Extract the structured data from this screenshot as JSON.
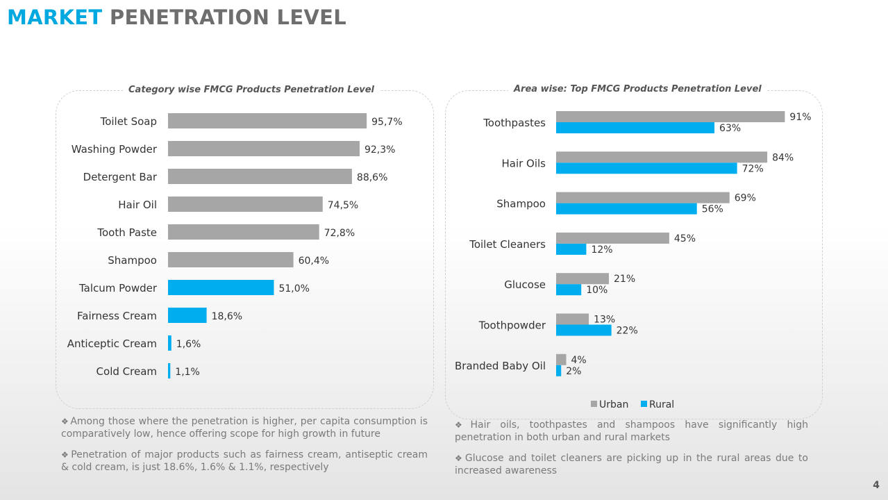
{
  "header": {
    "title_highlight": "MARKET",
    "title_rest": "PENETRATION LEVEL"
  },
  "chart_data": [
    {
      "type": "bar",
      "orientation": "horizontal",
      "title": "Category wise FMCG Products Penetration Level",
      "categories": [
        "Toilet Soap",
        "Washing Powder",
        "Detergent Bar",
        "Hair Oil",
        "Tooth Paste",
        "Shampoo",
        "Talcum Powder",
        "Fairness Cream",
        "Anticeptic Cream",
        "Cold Cream"
      ],
      "values": [
        95.7,
        92.3,
        88.6,
        74.5,
        72.8,
        60.4,
        51.0,
        18.6,
        1.6,
        1.1
      ],
      "labels": [
        "95,7%",
        "92,3%",
        "88,6%",
        "74,5%",
        "72,8%",
        "60,4%",
        "51,0%",
        "18,6%",
        "1,6%",
        "1,1%"
      ],
      "bar_colors": [
        "#a6a6a6",
        "#a6a6a6",
        "#a6a6a6",
        "#a6a6a6",
        "#a6a6a6",
        "#a6a6a6",
        "#00aeef",
        "#00aeef",
        "#00aeef",
        "#00aeef"
      ],
      "xlim": [
        0,
        100
      ],
      "grid": false
    },
    {
      "type": "bar",
      "orientation": "horizontal",
      "title": "Area wise: Top FMCG Products Penetration Level",
      "categories": [
        "Toothpastes",
        "Hair Oils",
        "Shampoo",
        "Toilet Cleaners",
        "Glucose",
        "Toothpowder",
        "Branded Baby Oil"
      ],
      "series": [
        {
          "name": "Urban",
          "values": [
            91,
            84,
            69,
            45,
            21,
            13,
            4
          ],
          "labels": [
            "91%",
            "84%",
            "69%",
            "45%",
            "21%",
            "13%",
            "4%"
          ],
          "color": "#a6a6a6"
        },
        {
          "name": "Rural",
          "values": [
            63,
            72,
            56,
            12,
            10,
            22,
            2
          ],
          "labels": [
            "63%",
            "72%",
            "56%",
            "12%",
            "10%",
            "22%",
            "2%"
          ],
          "color": "#00aeef"
        }
      ],
      "xlim": [
        0,
        100
      ],
      "legend": "bottom",
      "grid": false
    }
  ],
  "notes_left": [
    "Among those where the penetration is higher, per capita consumption is comparatively low, hence offering scope for high growth in future",
    "Penetration of major products such as fairness cream, antiseptic cream & cold cream, is just 18.6%, 1.6% & 1.1%, respectively"
  ],
  "notes_right": [
    "Hair oils, toothpastes and shampoos have significantly high penetration in both urban and rural markets",
    "Glucose and toilet cleaners are picking up in the rural areas due to increased awareness"
  ],
  "bullet_symbol": "❖",
  "page_number": "4"
}
